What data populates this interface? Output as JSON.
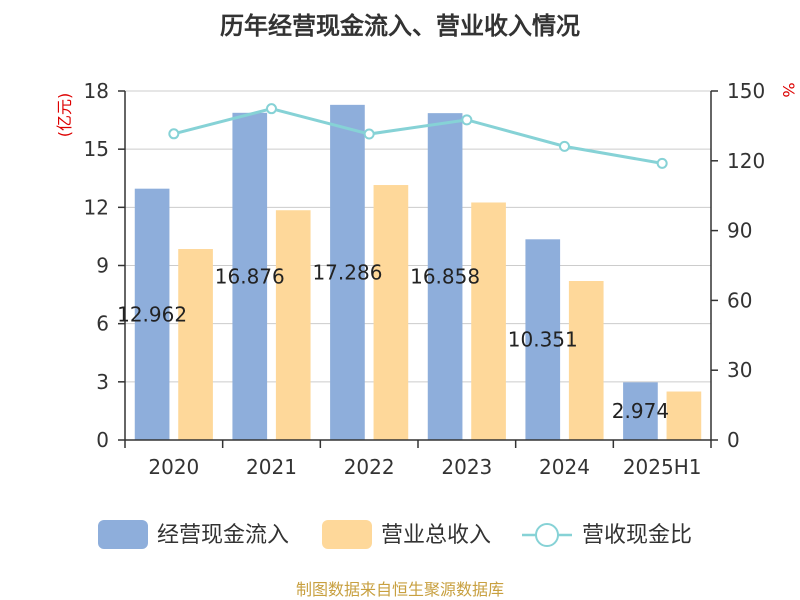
{
  "chart_data": {
    "type": "bar",
    "title": "历年经营现金流入、营业收入情况",
    "categories": [
      "2020",
      "2021",
      "2022",
      "2023",
      "2024",
      "2025H1"
    ],
    "y_left_unit": "(亿元)",
    "y_right_unit": "%",
    "y_left_ticks": [
      "0",
      "3",
      "6",
      "9",
      "12",
      "15",
      "18"
    ],
    "y_right_ticks": [
      "0",
      "30",
      "60",
      "90",
      "120",
      "150"
    ],
    "ylim_left": [
      0,
      18
    ],
    "ylim_right": [
      0,
      150
    ],
    "grid": true,
    "legend_position": "bottom",
    "series": [
      {
        "name": "经营现金流入",
        "type": "bar",
        "axis": "left",
        "color": "#8eaedb",
        "values": [
          12.962,
          16.876,
          17.286,
          16.858,
          10.351,
          2.974
        ],
        "data_labels": [
          "12.962",
          "16.876",
          "17.286",
          "16.858",
          "10.351",
          "2.974"
        ]
      },
      {
        "name": "营业总收入",
        "type": "bar",
        "axis": "left",
        "color": "#fed89a",
        "values": [
          9.85,
          11.85,
          13.15,
          12.25,
          8.2,
          2.5
        ]
      },
      {
        "name": "营收现金比",
        "type": "line",
        "axis": "right",
        "color": "#86d2d6",
        "values": [
          131.6,
          142.4,
          131.5,
          137.6,
          126.2,
          118.9
        ]
      }
    ]
  },
  "source": "制图数据来自恒生聚源数据库"
}
